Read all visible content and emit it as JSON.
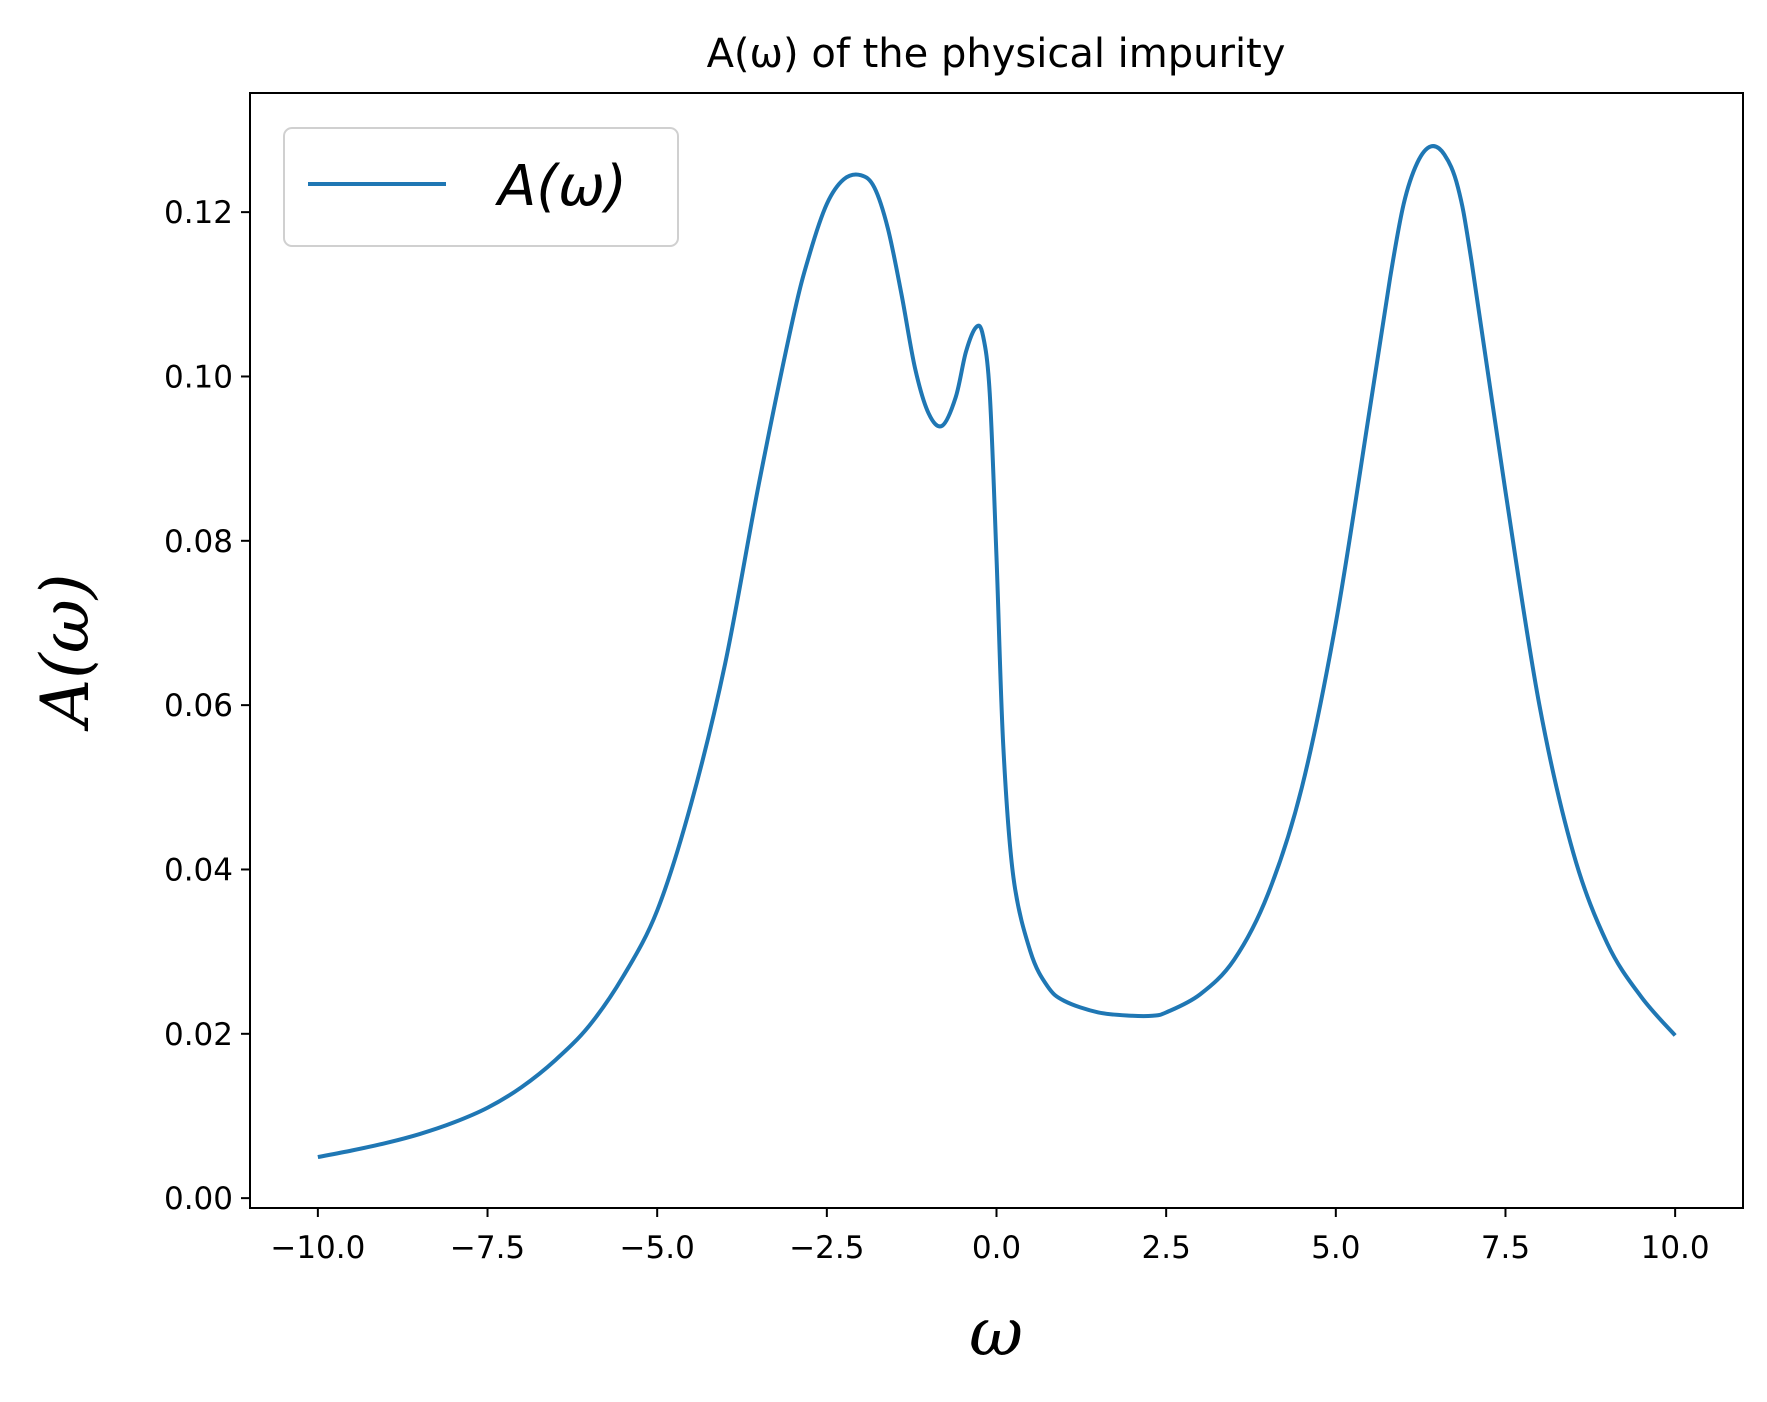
{
  "chart_data": {
    "type": "line",
    "title": "A(ω) of the physical impurity",
    "xlabel": "ω",
    "ylabel": "A(ω)",
    "xlim": [
      -11.0,
      11.0
    ],
    "ylim": [
      -0.0012,
      0.1345
    ],
    "xticks": [
      -10.0,
      -7.5,
      -5.0,
      -2.5,
      0.0,
      2.5,
      5.0,
      7.5,
      10.0
    ],
    "xtick_labels": [
      "−10.0",
      "−7.5",
      "−5.0",
      "−2.5",
      "0.0",
      "2.5",
      "5.0",
      "7.5",
      "10.0"
    ],
    "yticks": [
      0.0,
      0.02,
      0.04,
      0.06,
      0.08,
      0.1,
      0.12
    ],
    "ytick_labels": [
      "0.00",
      "0.02",
      "0.04",
      "0.06",
      "0.08",
      "0.10",
      "0.12"
    ],
    "grid": false,
    "legend_position": "top-left",
    "series": [
      {
        "name": "A(ω)",
        "color": "#1f77b4",
        "x": [
          -10.0,
          -9.5,
          -9.0,
          -8.5,
          -8.0,
          -7.5,
          -7.0,
          -6.5,
          -6.0,
          -5.5,
          -5.0,
          -4.5,
          -4.0,
          -3.5,
          -3.0,
          -2.75,
          -2.5,
          -2.25,
          -2.0,
          -1.8,
          -1.6,
          -1.4,
          -1.2,
          -1.0,
          -0.8,
          -0.6,
          -0.45,
          -0.3,
          -0.2,
          -0.1,
          0.0,
          0.1,
          0.25,
          0.5,
          0.75,
          1.0,
          1.5,
          2.0,
          2.3,
          2.5,
          3.0,
          3.5,
          4.0,
          4.5,
          5.0,
          5.5,
          5.8,
          6.0,
          6.2,
          6.4,
          6.6,
          6.8,
          7.0,
          7.5,
          8.0,
          8.5,
          9.0,
          9.5,
          10.0
        ],
        "values": [
          0.005,
          0.0058,
          0.0067,
          0.0078,
          0.0092,
          0.011,
          0.0135,
          0.0168,
          0.021,
          0.027,
          0.035,
          0.048,
          0.065,
          0.087,
          0.107,
          0.115,
          0.121,
          0.124,
          0.1245,
          0.123,
          0.118,
          0.11,
          0.101,
          0.0955,
          0.094,
          0.0975,
          0.103,
          0.106,
          0.105,
          0.098,
          0.078,
          0.055,
          0.039,
          0.03,
          0.0258,
          0.024,
          0.0226,
          0.0222,
          0.0222,
          0.0226,
          0.0248,
          0.029,
          0.037,
          0.05,
          0.07,
          0.096,
          0.112,
          0.121,
          0.126,
          0.128,
          0.127,
          0.123,
          0.114,
          0.086,
          0.06,
          0.042,
          0.031,
          0.0245,
          0.0198
        ]
      }
    ]
  }
}
